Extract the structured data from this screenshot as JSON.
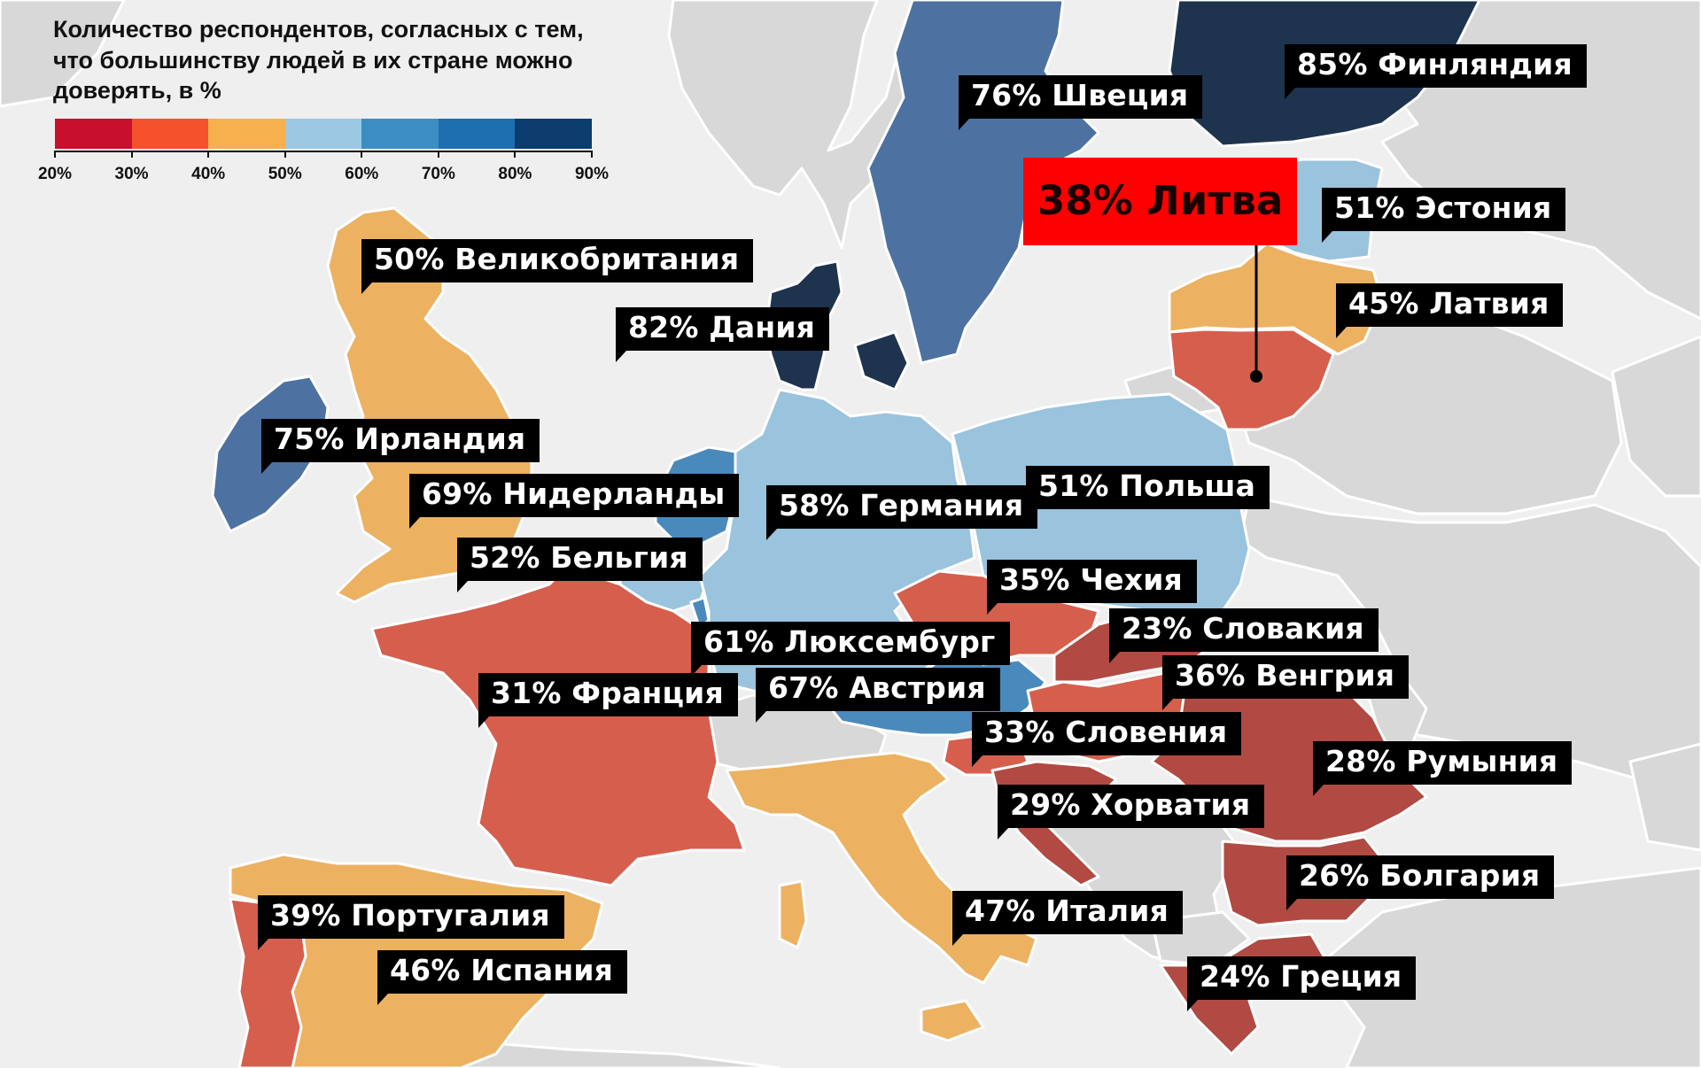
{
  "legend": {
    "title_lines": [
      "Количество респондентов, согласных с тем,",
      "что большинству людей в их стране можно",
      "доверять, в %"
    ],
    "scale_colors": [
      "#c8102e",
      "#f4512c",
      "#f7b04e",
      "#9cc8e3",
      "#3c8dc4",
      "#1e6fb0",
      "#0c3d6e"
    ],
    "tick_labels": [
      "20%",
      "30%",
      "40%",
      "50%",
      "60%",
      "70%",
      "80%",
      "90%"
    ]
  },
  "highlight": {
    "text": "38% Литва",
    "color": "#ff0000"
  },
  "countries": [
    {
      "key": "finland",
      "label": "85% Финляндия",
      "value": 85,
      "color": "#1e334d"
    },
    {
      "key": "sweden",
      "label": "76% Швеция",
      "value": 76,
      "color": "#4d72a1"
    },
    {
      "key": "estonia",
      "label": "51% Эстония",
      "value": 51,
      "color": "#9ac3de"
    },
    {
      "key": "latvia",
      "label": "45% Латвия",
      "value": 45,
      "color": "#ecb262"
    },
    {
      "key": "uk",
      "label": "50% Великобритания",
      "value": 50,
      "color": "#ecb262"
    },
    {
      "key": "denmark",
      "label": "82% Дания",
      "value": 82,
      "color": "#1e334d"
    },
    {
      "key": "ireland",
      "label": "75% Ирландия",
      "value": 75,
      "color": "#4d72a1"
    },
    {
      "key": "netherlands",
      "label": "69% Нидерланды",
      "value": 69,
      "color": "#4a89bb"
    },
    {
      "key": "belgium",
      "label": "52% Бельгия",
      "value": 52,
      "color": "#9ac3de"
    },
    {
      "key": "germany",
      "label": "58% Германия",
      "value": 58,
      "color": "#9ac3de"
    },
    {
      "key": "poland",
      "label": "51% Польша",
      "value": 51,
      "color": "#9ac3de"
    },
    {
      "key": "czech",
      "label": "35% Чехия",
      "value": 35,
      "color": "#d65e4d"
    },
    {
      "key": "slovakia",
      "label": "23% Словакия",
      "value": 23,
      "color": "#b04a42"
    },
    {
      "key": "hungary",
      "label": "36% Венгрия",
      "value": 36,
      "color": "#d65e4d"
    },
    {
      "key": "luxembourg",
      "label": "61% Люксембург",
      "value": 61,
      "color": "#4a89bb"
    },
    {
      "key": "austria",
      "label": "67% Австрия",
      "value": 67,
      "color": "#4a89bb"
    },
    {
      "key": "france",
      "label": "31% Франция",
      "value": 31,
      "color": "#d65e4d"
    },
    {
      "key": "slovenia",
      "label": "33% Словения",
      "value": 33,
      "color": "#d65e4d"
    },
    {
      "key": "romania",
      "label": "28% Румыния",
      "value": 28,
      "color": "#b04a42"
    },
    {
      "key": "croatia",
      "label": "29% Хорватия",
      "value": 29,
      "color": "#b04a42"
    },
    {
      "key": "bulgaria",
      "label": "26% Болгария",
      "value": 26,
      "color": "#b04a42"
    },
    {
      "key": "portugal",
      "label": "39% Португалия",
      "value": 39,
      "color": "#d65e4d"
    },
    {
      "key": "spain",
      "label": "46% Испания",
      "value": 46,
      "color": "#ecb262"
    },
    {
      "key": "italy",
      "label": "47% Италия",
      "value": 47,
      "color": "#ecb262"
    },
    {
      "key": "greece",
      "label": "24% Греция",
      "value": 24,
      "color": "#b04a42"
    },
    {
      "key": "lithuania",
      "label": "38% Литва",
      "value": 38,
      "color": "#d65e4d"
    }
  ]
}
